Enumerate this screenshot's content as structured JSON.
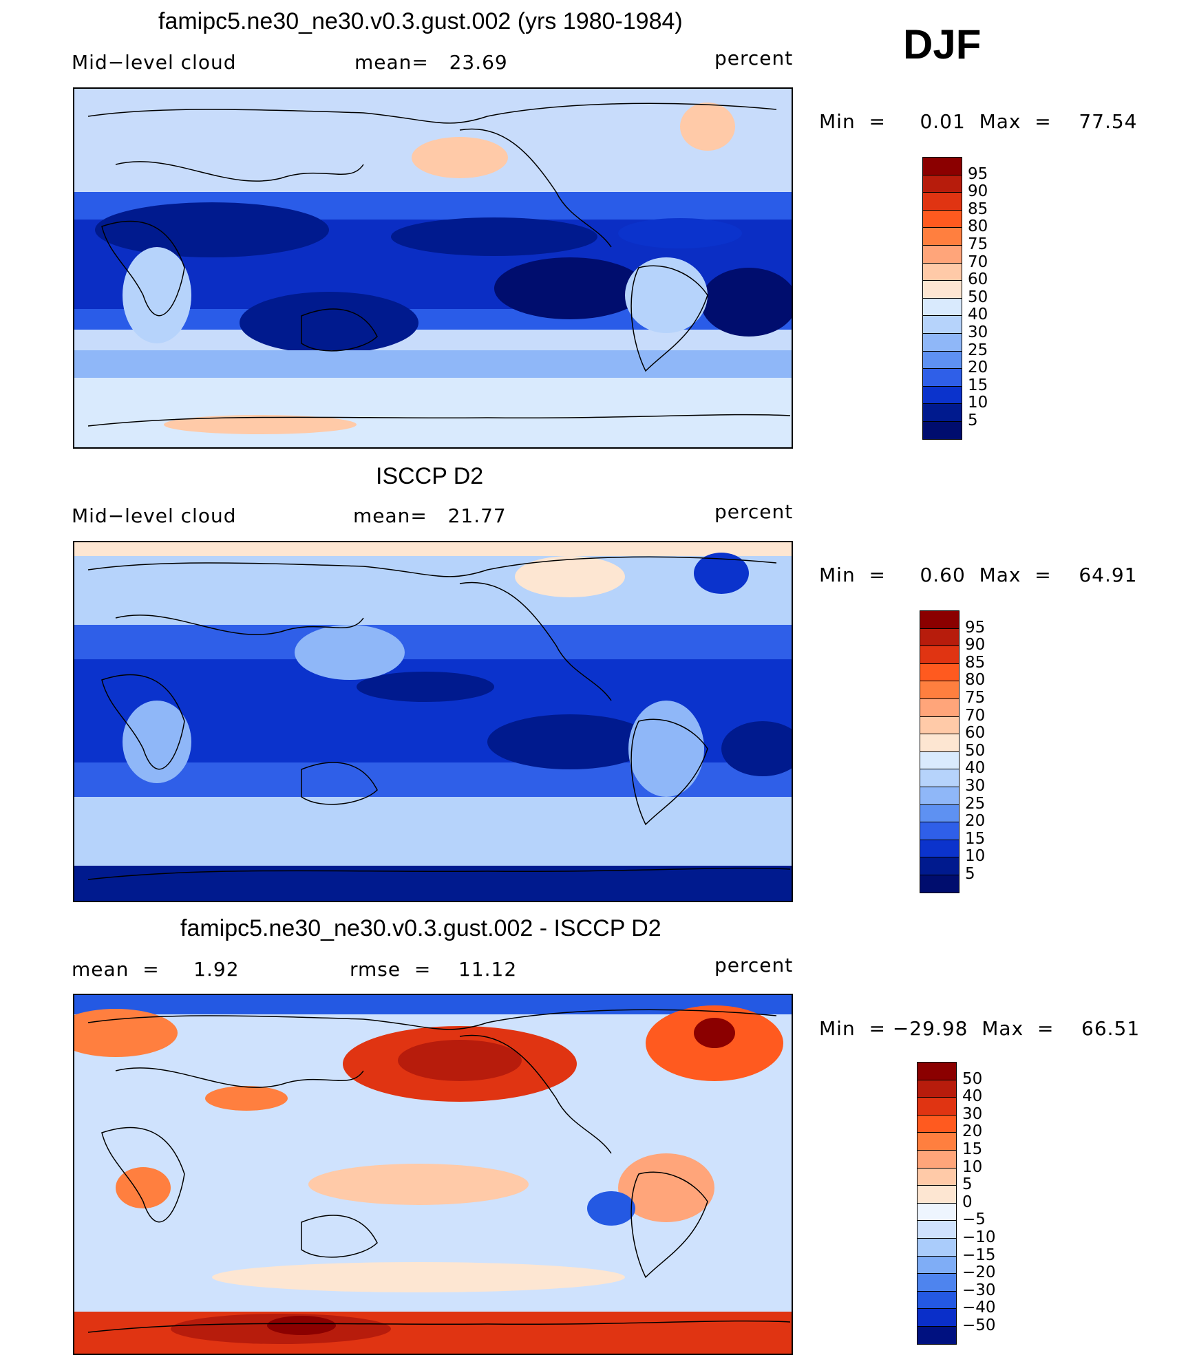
{
  "season": "DJF",
  "panels": [
    {
      "title": "famipc5.ne30_ne30.v0.3.gust.002 (yrs 1980-1984)",
      "left": "Mid−level cloud",
      "center": "mean=   23.69",
      "right": "percent",
      "minmax": "Min  =     0.01  Max  =    77.54",
      "levels": [
        "95",
        "90",
        "85",
        "80",
        "75",
        "70",
        "60",
        "50",
        "40",
        "30",
        "25",
        "20",
        "15",
        "10",
        "5"
      ]
    },
    {
      "title": "ISCCP D2",
      "left": "Mid−level cloud",
      "center": "mean=   21.77",
      "right": "percent",
      "minmax": "Min  =     0.60  Max  =    64.91",
      "levels": [
        "95",
        "90",
        "85",
        "80",
        "75",
        "70",
        "60",
        "50",
        "40",
        "30",
        "25",
        "20",
        "15",
        "10",
        "5"
      ]
    },
    {
      "title": "famipc5.ne30_ne30.v0.3.gust.002 - ISCCP D2",
      "left": "mean  =     1.92",
      "center": "rmse  =    11.12",
      "right": "percent",
      "minmax": "Min  = −29.98  Max  =    66.51",
      "levels": [
        "50",
        "40",
        "30",
        "20",
        "15",
        "10",
        "5",
        "0",
        "−5",
        "−10",
        "−15",
        "−20",
        "−30",
        "−40",
        "−50"
      ]
    }
  ],
  "colors": {
    "abs_scale": [
      "#8b0000",
      "#b71c0c",
      "#e03412",
      "#ff5a1f",
      "#ff7f3f",
      "#ffa57a",
      "#ffcaa8",
      "#fde6d2",
      "#d9eafd",
      "#b6d3fb",
      "#8fb7f8",
      "#5e91f2",
      "#2f5fe8",
      "#0b33cc",
      "#001a8e",
      "#000d6e"
    ],
    "diff_scale": [
      "#8b0000",
      "#b71c0c",
      "#e03412",
      "#ff5a1f",
      "#ff7f3f",
      "#ffa57a",
      "#ffcaa8",
      "#fde6d2",
      "#eef5fe",
      "#cfe2fd",
      "#aaccfb",
      "#7fadf6",
      "#4e84ee",
      "#2459e3",
      "#0a2fc9",
      "#001180"
    ]
  }
}
